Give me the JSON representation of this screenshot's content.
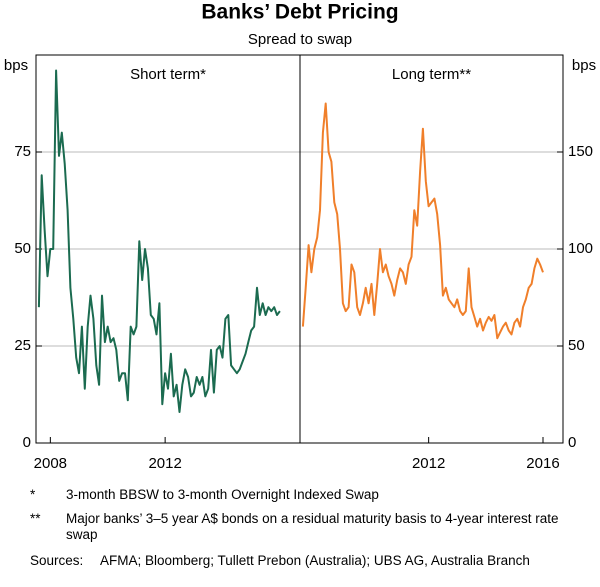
{
  "figure": {
    "title": "Banks’ Debt Pricing",
    "subtitle": "Spread to swap"
  },
  "chart_data": [
    {
      "type": "line",
      "title": "Short term*",
      "ylabel": "bps",
      "xlim": [
        2007.5,
        2016.7
      ],
      "xticks": [
        2008,
        2012
      ],
      "ylim": [
        0,
        100
      ],
      "yticks": [
        0,
        25,
        50,
        75
      ],
      "grid": true,
      "series": [
        {
          "color": "#1b6b50",
          "x": [
            2007.6,
            2007.7,
            2007.8,
            2007.9,
            2008,
            2008.1,
            2008.2,
            2008.3,
            2008.4,
            2008.5,
            2008.6,
            2008.7,
            2008.8,
            2008.9,
            2009,
            2009.1,
            2009.2,
            2009.3,
            2009.4,
            2009.5,
            2009.6,
            2009.7,
            2009.8,
            2009.9,
            2010,
            2010.1,
            2010.2,
            2010.3,
            2010.4,
            2010.5,
            2010.6,
            2010.7,
            2010.8,
            2010.9,
            2011,
            2011.1,
            2011.2,
            2011.3,
            2011.4,
            2011.5,
            2011.6,
            2011.7,
            2011.8,
            2011.9,
            2012,
            2012.1,
            2012.2,
            2012.3,
            2012.4,
            2012.5,
            2012.6,
            2012.7,
            2012.8,
            2012.9,
            2013,
            2013.1,
            2013.2,
            2013.3,
            2013.4,
            2013.5,
            2013.6,
            2013.7,
            2013.8,
            2013.9,
            2014,
            2014.1,
            2014.2,
            2014.3,
            2014.4,
            2014.5,
            2014.6,
            2014.7,
            2014.8,
            2014.9,
            2015,
            2015.1,
            2015.2,
            2015.3,
            2015.4,
            2015.5,
            2015.6,
            2015.7,
            2015.8,
            2015.9,
            2016
          ],
          "values": [
            35,
            69,
            55,
            43,
            50,
            50,
            96,
            74,
            80,
            72,
            60,
            40,
            32,
            22,
            18,
            30,
            14,
            30,
            38,
            32,
            20,
            15,
            38,
            26,
            30,
            26,
            27,
            24,
            16,
            18,
            18,
            11,
            30,
            28,
            30,
            52,
            42,
            50,
            45,
            33,
            32,
            28,
            36,
            10,
            18,
            14,
            23,
            12,
            15,
            8,
            15,
            19,
            17,
            12,
            13,
            17,
            15,
            17,
            12,
            14,
            24,
            13,
            24,
            25,
            22,
            32,
            33,
            20,
            19,
            18,
            19,
            21,
            23,
            26,
            29,
            30,
            40,
            33,
            36,
            33,
            35,
            34,
            35,
            33,
            34
          ]
        }
      ]
    },
    {
      "type": "line",
      "title": "Long term**",
      "ylabel": "bps",
      "xlim": [
        2007.5,
        2016.7
      ],
      "xticks": [
        2012,
        2016
      ],
      "ylim": [
        0,
        200
      ],
      "yticks": [
        0,
        50,
        100,
        150
      ],
      "grid": true,
      "series": [
        {
          "color": "#f07f2a",
          "x": [
            2007.6,
            2007.7,
            2007.8,
            2007.9,
            2008,
            2008.1,
            2008.2,
            2008.3,
            2008.4,
            2008.5,
            2008.6,
            2008.7,
            2008.8,
            2008.9,
            2009,
            2009.1,
            2009.2,
            2009.3,
            2009.4,
            2009.5,
            2009.6,
            2009.7,
            2009.8,
            2009.9,
            2010,
            2010.1,
            2010.2,
            2010.3,
            2010.4,
            2010.5,
            2010.6,
            2010.7,
            2010.8,
            2010.9,
            2011,
            2011.1,
            2011.2,
            2011.3,
            2011.4,
            2011.5,
            2011.6,
            2011.7,
            2011.8,
            2011.9,
            2012,
            2012.1,
            2012.2,
            2012.3,
            2012.4,
            2012.5,
            2012.6,
            2012.7,
            2012.8,
            2012.9,
            2013,
            2013.1,
            2013.2,
            2013.3,
            2013.4,
            2013.5,
            2013.6,
            2013.7,
            2013.8,
            2013.9,
            2014,
            2014.1,
            2014.2,
            2014.3,
            2014.4,
            2014.5,
            2014.6,
            2014.7,
            2014.8,
            2014.9,
            2015,
            2015.1,
            2015.2,
            2015.3,
            2015.4,
            2015.5,
            2015.6,
            2015.7,
            2015.8,
            2015.9,
            2016
          ],
          "values": [
            60,
            80,
            102,
            88,
            100,
            106,
            120,
            160,
            175,
            150,
            145,
            124,
            118,
            100,
            72,
            68,
            70,
            92,
            88,
            70,
            66,
            72,
            80,
            72,
            82,
            66,
            82,
            100,
            88,
            92,
            86,
            82,
            76,
            84,
            90,
            88,
            82,
            92,
            96,
            120,
            112,
            140,
            162,
            135,
            122,
            124,
            126,
            118,
            102,
            76,
            80,
            74,
            72,
            70,
            74,
            68,
            66,
            68,
            90,
            70,
            65,
            60,
            64,
            58,
            62,
            65,
            63,
            66,
            54,
            57,
            60,
            62,
            58,
            56,
            62,
            64,
            60,
            70,
            74,
            80,
            82,
            90,
            95,
            92,
            88
          ]
        }
      ]
    }
  ],
  "notes": [
    {
      "marker": "*",
      "text": "3-month BBSW to 3-month Overnight Indexed Swap"
    },
    {
      "marker": "**",
      "text": "Major banks’ 3–5 year A$ bonds on a residual maturity basis to 4-year interest rate swap"
    }
  ],
  "sources": {
    "label": "Sources:",
    "text": "AFMA; Bloomberg; Tullett Prebon (Australia); UBS AG, Australia Branch"
  }
}
